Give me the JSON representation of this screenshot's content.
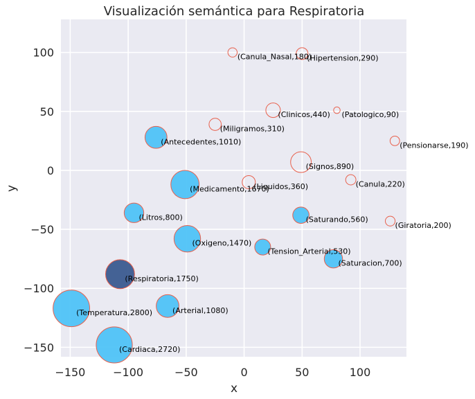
{
  "chart_data": {
    "type": "scatter",
    "title": "Visualización semántica para Respiratoria",
    "xlabel": "x",
    "ylabel": "y",
    "xlim": [
      -158,
      140
    ],
    "ylim": [
      -158,
      128
    ],
    "xticks": [
      -150,
      -100,
      -50,
      0,
      50,
      100
    ],
    "yticks": [
      -150,
      -100,
      -50,
      0,
      50,
      100
    ],
    "xtick_labels": [
      "−150",
      "−100",
      "−50",
      "0",
      "50",
      "100"
    ],
    "ytick_labels": [
      "−150",
      "−100",
      "−50",
      "0",
      "50",
      "100"
    ],
    "grid": true,
    "colors": {
      "background": "#eaeaf2",
      "grid": "#ffffff",
      "filled": "#4fc3f7",
      "hollow": "none",
      "edge": "#e8604c",
      "highlight": "#3b5b8f"
    },
    "points": [
      {
        "label": "(Canula_Nasal,180)",
        "x": -10,
        "y": 100,
        "weight": 180,
        "style": "hollow"
      },
      {
        "label": "(Hipertension,290)",
        "x": 50,
        "y": 99,
        "weight": 290,
        "style": "hollow"
      },
      {
        "label": "(Clinicos,440)",
        "x": 25,
        "y": 51,
        "weight": 440,
        "style": "hollow"
      },
      {
        "label": "(Patologico,90)",
        "x": 80,
        "y": 51,
        "weight": 90,
        "style": "hollow"
      },
      {
        "label": "(Miligramos,310)",
        "x": -25,
        "y": 39,
        "weight": 310,
        "style": "hollow"
      },
      {
        "label": "(Antecedentes,1010)",
        "x": -76,
        "y": 28,
        "weight": 1010,
        "style": "filled"
      },
      {
        "label": "(Pensionarse,190)",
        "x": 130,
        "y": 25,
        "weight": 190,
        "style": "hollow"
      },
      {
        "label": "(Signos,890)",
        "x": 49,
        "y": 7,
        "weight": 890,
        "style": "hollow"
      },
      {
        "label": "(Medicamento,1670)",
        "x": -51,
        "y": -12,
        "weight": 1670,
        "style": "filled"
      },
      {
        "label": "(Liquidos,360)",
        "x": 4,
        "y": -10,
        "weight": 360,
        "style": "hollow"
      },
      {
        "label": "(Canula,220)",
        "x": 92,
        "y": -8,
        "weight": 220,
        "style": "hollow"
      },
      {
        "label": "(Litros,800)",
        "x": -95,
        "y": -36,
        "weight": 800,
        "style": "filled"
      },
      {
        "label": "(Saturando,560)",
        "x": 49,
        "y": -38,
        "weight": 560,
        "style": "filled"
      },
      {
        "label": "(Giratoria,200)",
        "x": 126,
        "y": -43,
        "weight": 200,
        "style": "hollow"
      },
      {
        "label": "(Oxigeno,1470)",
        "x": -49,
        "y": -58,
        "weight": 1470,
        "style": "filled"
      },
      {
        "label": "(Tension_Arterial,530)",
        "x": 16,
        "y": -65,
        "weight": 530,
        "style": "filled"
      },
      {
        "label": "(Saturacion,700)",
        "x": 77,
        "y": -75,
        "weight": 700,
        "style": "filled"
      },
      {
        "label": "(Respiratoria,1750)",
        "x": -107,
        "y": -88,
        "weight": 1750,
        "style": "highlight"
      },
      {
        "label": "(Temperatura,2800)",
        "x": -149,
        "y": -117,
        "weight": 2800,
        "style": "filled"
      },
      {
        "label": "(Arterial,1080)",
        "x": -66,
        "y": -115,
        "weight": 1080,
        "style": "filled"
      },
      {
        "label": "(Cardiaca,2720)",
        "x": -112,
        "y": -148,
        "weight": 2720,
        "style": "filled"
      }
    ]
  }
}
